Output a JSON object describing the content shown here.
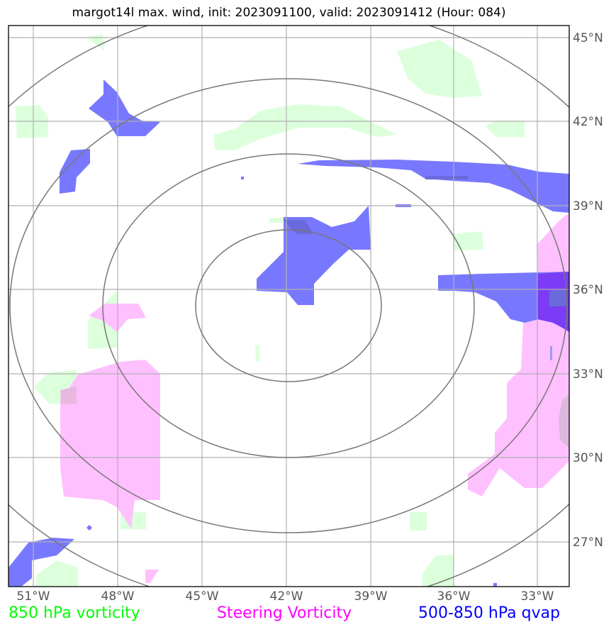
{
  "title": "margot14l max. wind, init: 2023091100, valid: 2023091412 (Hour: 084)",
  "longitude_labels": [
    "51°W",
    "48°W",
    "45°W",
    "42°W",
    "39°W",
    "36°W",
    "33°W"
  ],
  "latitude_labels": [
    "45°N",
    "42°N",
    "39°N",
    "36°N",
    "33°N",
    "30°N",
    "27°N"
  ],
  "legend": [
    {
      "label": "850 hPa vorticity",
      "color": "#00ff00"
    },
    {
      "label": "Steering Vorticity",
      "color": "#ff00ff"
    },
    {
      "label": "500-850 hPa qvap",
      "color": "#0000ff"
    }
  ],
  "colors": {
    "vorticity_850_fill": "#dcffdc",
    "steering_vorticity_fill": "#ffc0ff",
    "qvap_fill": "#7878ff",
    "qvap_strong_fill": "#7a3cf5",
    "grid": "#b0b0b0",
    "range_rings": "#777777"
  }
}
